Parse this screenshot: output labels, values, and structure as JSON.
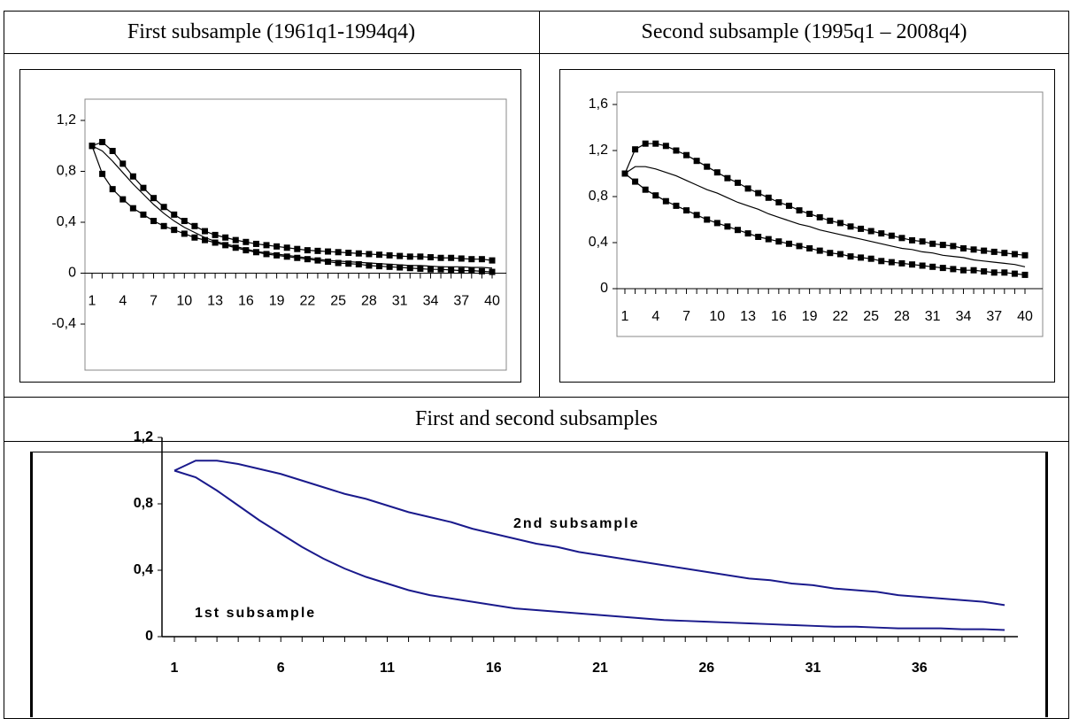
{
  "table": {
    "headers": [
      "First subsample (1961q1-1994q4)",
      "Second subsample (1995q1 – 2008q4)"
    ],
    "combined_header": "First and second subsamples"
  },
  "chart_data": [
    {
      "type": "line",
      "x": [
        1,
        2,
        3,
        4,
        5,
        6,
        7,
        8,
        9,
        10,
        11,
        12,
        13,
        14,
        15,
        16,
        17,
        18,
        19,
        20,
        21,
        22,
        23,
        24,
        25,
        26,
        27,
        28,
        29,
        30,
        31,
        32,
        33,
        34,
        35,
        36,
        37,
        38,
        39,
        40
      ],
      "xlim": [
        1,
        40
      ],
      "xticks": [
        1,
        4,
        7,
        10,
        13,
        16,
        19,
        22,
        25,
        28,
        31,
        34,
        37,
        40
      ],
      "ylim": [
        -0.4,
        1.2
      ],
      "yticks": [
        {
          "value": -0.4,
          "label": "-0,4"
        },
        0,
        {
          "value": 0.4,
          "label": "0,4"
        },
        {
          "value": 0.8,
          "label": "0,8"
        },
        {
          "value": 1.2,
          "label": "1,2"
        }
      ],
      "series": [
        {
          "color": "#000000",
          "marker": "square",
          "values": [
            1.0,
            1.03,
            0.96,
            0.86,
            0.76,
            0.67,
            0.59,
            0.52,
            0.46,
            0.41,
            0.37,
            0.33,
            0.3,
            0.28,
            0.26,
            0.245,
            0.23,
            0.22,
            0.21,
            0.2,
            0.19,
            0.18,
            0.175,
            0.17,
            0.165,
            0.16,
            0.155,
            0.15,
            0.145,
            0.14,
            0.135,
            0.13,
            0.13,
            0.125,
            0.12,
            0.12,
            0.115,
            0.11,
            0.11,
            0.1
          ]
        },
        {
          "color": "#000000",
          "values": [
            1.0,
            0.96,
            0.88,
            0.79,
            0.7,
            0.62,
            0.54,
            0.47,
            0.41,
            0.36,
            0.32,
            0.28,
            0.25,
            0.23,
            0.21,
            0.19,
            0.17,
            0.16,
            0.15,
            0.14,
            0.13,
            0.12,
            0.11,
            0.1,
            0.095,
            0.09,
            0.085,
            0.08,
            0.075,
            0.07,
            0.065,
            0.06,
            0.06,
            0.055,
            0.05,
            0.05,
            0.05,
            0.045,
            0.045,
            0.04
          ]
        },
        {
          "color": "#000000",
          "marker": "square",
          "values": [
            1.0,
            0.78,
            0.66,
            0.58,
            0.51,
            0.46,
            0.41,
            0.37,
            0.34,
            0.31,
            0.28,
            0.26,
            0.24,
            0.22,
            0.2,
            0.18,
            0.165,
            0.15,
            0.14,
            0.13,
            0.12,
            0.11,
            0.1,
            0.09,
            0.08,
            0.075,
            0.07,
            0.06,
            0.055,
            0.05,
            0.045,
            0.04,
            0.035,
            0.03,
            0.03,
            0.025,
            0.02,
            0.02,
            0.015,
            0.01
          ]
        }
      ]
    },
    {
      "type": "line",
      "x": [
        1,
        2,
        3,
        4,
        5,
        6,
        7,
        8,
        9,
        10,
        11,
        12,
        13,
        14,
        15,
        16,
        17,
        18,
        19,
        20,
        21,
        22,
        23,
        24,
        25,
        26,
        27,
        28,
        29,
        30,
        31,
        32,
        33,
        34,
        35,
        36,
        37,
        38,
        39,
        40
      ],
      "xlim": [
        1,
        40
      ],
      "xticks": [
        1,
        4,
        7,
        10,
        13,
        16,
        19,
        22,
        25,
        28,
        31,
        34,
        37,
        40
      ],
      "ylim": [
        0,
        1.6
      ],
      "yticks": [
        0,
        {
          "value": 0.4,
          "label": "0,4"
        },
        {
          "value": 0.8,
          "label": "0,8"
        },
        {
          "value": 1.2,
          "label": "1,2"
        },
        {
          "value": 1.6,
          "label": "1,6"
        }
      ],
      "series": [
        {
          "color": "#000000",
          "marker": "square",
          "values": [
            1.0,
            1.21,
            1.26,
            1.26,
            1.24,
            1.2,
            1.16,
            1.11,
            1.06,
            1.01,
            0.96,
            0.92,
            0.87,
            0.83,
            0.79,
            0.75,
            0.72,
            0.68,
            0.65,
            0.62,
            0.59,
            0.57,
            0.54,
            0.52,
            0.5,
            0.48,
            0.46,
            0.44,
            0.42,
            0.41,
            0.39,
            0.38,
            0.37,
            0.35,
            0.34,
            0.33,
            0.32,
            0.31,
            0.3,
            0.29
          ]
        },
        {
          "color": "#000000",
          "values": [
            1.0,
            1.06,
            1.06,
            1.04,
            1.01,
            0.98,
            0.94,
            0.9,
            0.86,
            0.83,
            0.79,
            0.75,
            0.72,
            0.69,
            0.65,
            0.62,
            0.59,
            0.56,
            0.54,
            0.51,
            0.49,
            0.47,
            0.45,
            0.43,
            0.41,
            0.39,
            0.37,
            0.35,
            0.34,
            0.32,
            0.31,
            0.29,
            0.28,
            0.27,
            0.25,
            0.24,
            0.23,
            0.22,
            0.21,
            0.19
          ]
        },
        {
          "color": "#000000",
          "marker": "square",
          "values": [
            1.0,
            0.93,
            0.86,
            0.81,
            0.76,
            0.72,
            0.68,
            0.64,
            0.6,
            0.57,
            0.54,
            0.51,
            0.48,
            0.45,
            0.43,
            0.41,
            0.39,
            0.37,
            0.35,
            0.33,
            0.31,
            0.3,
            0.28,
            0.27,
            0.26,
            0.24,
            0.23,
            0.22,
            0.21,
            0.2,
            0.19,
            0.18,
            0.17,
            0.16,
            0.16,
            0.15,
            0.14,
            0.14,
            0.13,
            0.12
          ]
        }
      ]
    },
    {
      "type": "line",
      "x": [
        1,
        2,
        3,
        4,
        5,
        6,
        7,
        8,
        9,
        10,
        11,
        12,
        13,
        14,
        15,
        16,
        17,
        18,
        19,
        20,
        21,
        22,
        23,
        24,
        25,
        26,
        27,
        28,
        29,
        30,
        31,
        32,
        33,
        34,
        35,
        36,
        37,
        38,
        39,
        40
      ],
      "xlim": [
        1,
        40
      ],
      "xticks": [
        1,
        6,
        11,
        16,
        21,
        26,
        31,
        36
      ],
      "ylim": [
        0,
        1.2
      ],
      "yticks": [
        0,
        {
          "value": 0.4,
          "label": "0,4"
        },
        {
          "value": 0.8,
          "label": "0,8"
        },
        {
          "value": 1.2,
          "label": "1,2"
        }
      ],
      "series": [
        {
          "name": "1st subsample",
          "color": "#1a1a8c",
          "values": [
            1.0,
            0.96,
            0.88,
            0.79,
            0.7,
            0.62,
            0.54,
            0.47,
            0.41,
            0.36,
            0.32,
            0.28,
            0.25,
            0.23,
            0.21,
            0.19,
            0.17,
            0.16,
            0.15,
            0.14,
            0.13,
            0.12,
            0.11,
            0.1,
            0.095,
            0.09,
            0.085,
            0.08,
            0.075,
            0.07,
            0.065,
            0.06,
            0.06,
            0.055,
            0.05,
            0.05,
            0.05,
            0.045,
            0.045,
            0.04
          ]
        },
        {
          "name": "2nd subsample",
          "color": "#1a1a8c",
          "values": [
            1.0,
            1.06,
            1.06,
            1.04,
            1.01,
            0.98,
            0.94,
            0.9,
            0.86,
            0.83,
            0.79,
            0.75,
            0.72,
            0.69,
            0.65,
            0.62,
            0.59,
            0.56,
            0.54,
            0.51,
            0.49,
            0.47,
            0.45,
            0.43,
            0.41,
            0.39,
            0.37,
            0.35,
            0.34,
            0.32,
            0.31,
            0.29,
            0.28,
            0.27,
            0.25,
            0.24,
            0.23,
            0.22,
            0.21,
            0.19
          ]
        }
      ]
    }
  ]
}
